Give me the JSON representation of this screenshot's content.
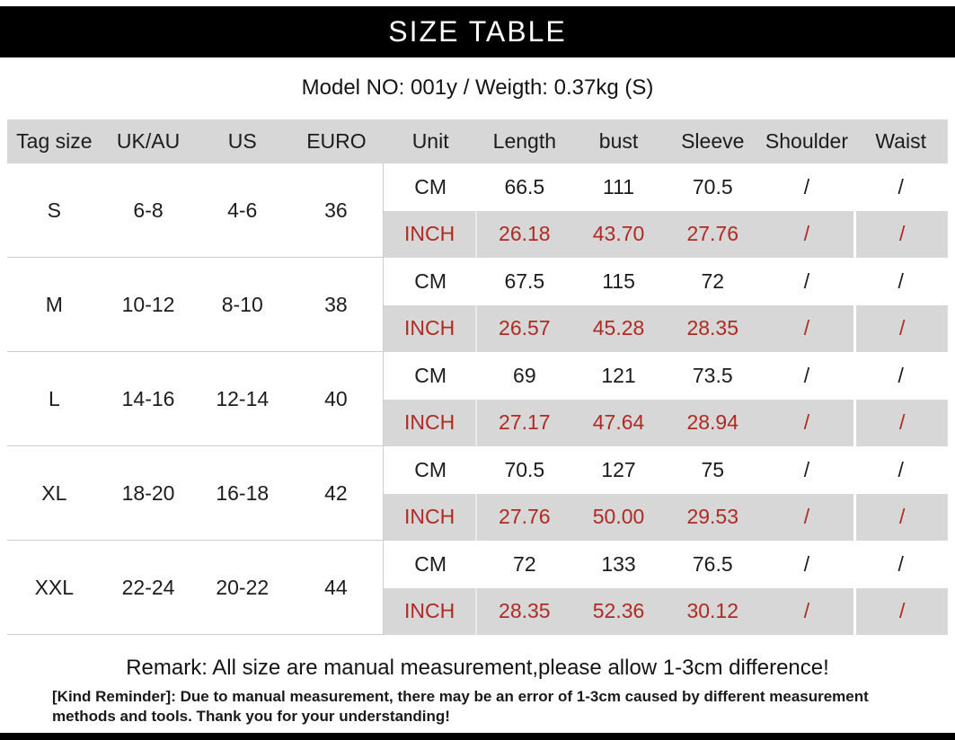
{
  "title": "SIZE TABLE",
  "model_line": "Model NO: 001y / Weigth: 0.37kg (S)",
  "table": {
    "headers": [
      "Tag size",
      "UK/AU",
      "US",
      "EURO",
      "Unit",
      "Length",
      "bust",
      "Sleeve",
      "Shoulder",
      "Waist"
    ],
    "unit_labels": {
      "cm": "CM",
      "inch": "INCH"
    },
    "rows": [
      {
        "tag": "S",
        "uk_au": "6-8",
        "us": "4-6",
        "euro": "36",
        "cm": [
          "66.5",
          "111",
          "70.5",
          "/",
          "/"
        ],
        "inch": [
          "26.18",
          "43.70",
          "27.76",
          "/",
          "/"
        ]
      },
      {
        "tag": "M",
        "uk_au": "10-12",
        "us": "8-10",
        "euro": "38",
        "cm": [
          "67.5",
          "115",
          "72",
          "/",
          "/"
        ],
        "inch": [
          "26.57",
          "45.28",
          "28.35",
          "/",
          "/"
        ]
      },
      {
        "tag": "L",
        "uk_au": "14-16",
        "us": "12-14",
        "euro": "40",
        "cm": [
          "69",
          "121",
          "73.5",
          "/",
          "/"
        ],
        "inch": [
          "27.17",
          "47.64",
          "28.94",
          "/",
          "/"
        ]
      },
      {
        "tag": "XL",
        "uk_au": "18-20",
        "us": "16-18",
        "euro": "42",
        "cm": [
          "70.5",
          "127",
          "75",
          "/",
          "/"
        ],
        "inch": [
          "27.76",
          "50.00",
          "29.53",
          "/",
          "/"
        ]
      },
      {
        "tag": "XXL",
        "uk_au": "22-24",
        "us": "20-22",
        "euro": "44",
        "cm": [
          "72",
          "133",
          "76.5",
          "/",
          "/"
        ],
        "inch": [
          "28.35",
          "52.36",
          "30.12",
          "/",
          "/"
        ]
      }
    ]
  },
  "remark": "Remark: All size are manual measurement,please allow 1-3cm difference!",
  "kind_reminder": "[Kind Reminder]: Due to manual measurement, there may be an error of 1-3cm caused by different measurement methods and tools. Thank you for your understanding!",
  "colors": {
    "bar_black": "#000000",
    "header_bg": "#d7d7d7",
    "inch_bg": "#d7d7d7",
    "accent_red": "#b02a23"
  }
}
